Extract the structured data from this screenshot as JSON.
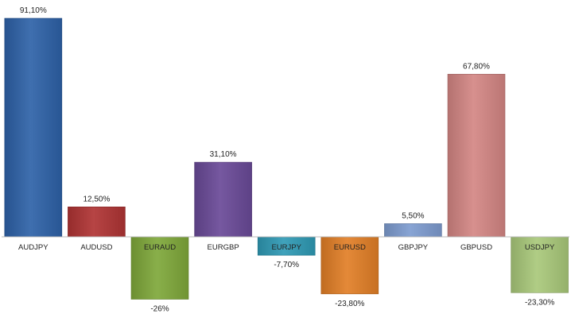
{
  "chart_data": {
    "type": "bar",
    "categories": [
      "AUDJPY",
      "AUDUSD",
      "EURAUD",
      "EURGBP",
      "EURJPY",
      "EURUSD",
      "GBPJPY",
      "GBPUSD",
      "USDJPY"
    ],
    "values": [
      91.1,
      12.5,
      -26,
      31.1,
      -7.7,
      -23.8,
      5.5,
      67.8,
      -23.3
    ],
    "value_labels": [
      "91,10%",
      "12,50%",
      "-26%",
      "31,10%",
      "-7,70%",
      "-23,80%",
      "5,50%",
      "67,80%",
      "-23,30%"
    ],
    "colors": [
      "#2e62a8",
      "#b03434",
      "#7fa83a",
      "#6a4a98",
      "#2f9ab5",
      "#e27f27",
      "#7e9cd0",
      "#d48684",
      "#a9c97a"
    ],
    "title": "",
    "xlabel": "",
    "ylabel": "",
    "ylim": [
      -26,
      91.1
    ],
    "grid": false,
    "legend": "none"
  }
}
